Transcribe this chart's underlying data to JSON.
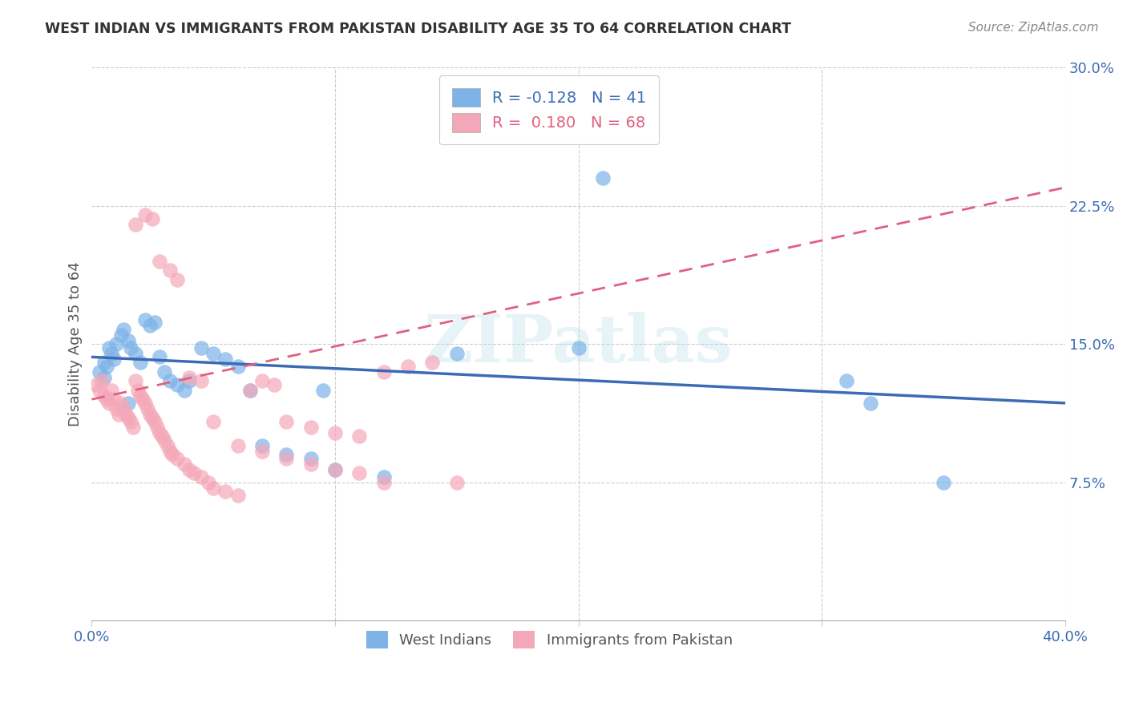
{
  "title": "WEST INDIAN VS IMMIGRANTS FROM PAKISTAN DISABILITY AGE 35 TO 64 CORRELATION CHART",
  "source": "Source: ZipAtlas.com",
  "ylabel": "Disability Age 35 to 64",
  "x_min": 0.0,
  "x_max": 0.4,
  "y_min": 0.0,
  "y_max": 0.3,
  "x_ticks": [
    0.0,
    0.1,
    0.2,
    0.3,
    0.4
  ],
  "x_tick_labels": [
    "0.0%",
    "",
    "",
    "",
    "40.0%"
  ],
  "y_ticks_right": [
    0.075,
    0.15,
    0.225,
    0.3
  ],
  "y_tick_labels_right": [
    "7.5%",
    "15.0%",
    "22.5%",
    "30.0%"
  ],
  "legend_R1": "-0.128",
  "legend_N1": "41",
  "legend_R2": "0.180",
  "legend_N2": "68",
  "blue_color": "#7EB3E8",
  "pink_color": "#F4A7B9",
  "blue_line_color": "#3B6BB5",
  "pink_line_color": "#E06080",
  "watermark": "ZIPatlas",
  "west_indians_x": [
    0.003,
    0.005,
    0.006,
    0.007,
    0.008,
    0.009,
    0.01,
    0.012,
    0.013,
    0.015,
    0.016,
    0.018,
    0.02,
    0.022,
    0.024,
    0.026,
    0.028,
    0.03,
    0.032,
    0.035,
    0.038,
    0.04,
    0.045,
    0.05,
    0.055,
    0.06,
    0.065,
    0.07,
    0.08,
    0.09,
    0.095,
    0.1,
    0.12,
    0.15,
    0.2,
    0.21,
    0.31,
    0.32,
    0.35,
    0.005,
    0.015
  ],
  "west_indians_y": [
    0.135,
    0.14,
    0.138,
    0.148,
    0.145,
    0.142,
    0.15,
    0.155,
    0.158,
    0.152,
    0.148,
    0.145,
    0.14,
    0.163,
    0.16,
    0.162,
    0.143,
    0.135,
    0.13,
    0.128,
    0.125,
    0.13,
    0.148,
    0.145,
    0.142,
    0.138,
    0.125,
    0.095,
    0.09,
    0.088,
    0.125,
    0.082,
    0.078,
    0.145,
    0.148,
    0.24,
    0.13,
    0.118,
    0.075,
    0.132,
    0.118
  ],
  "pakistan_x": [
    0.002,
    0.003,
    0.004,
    0.005,
    0.006,
    0.007,
    0.008,
    0.009,
    0.01,
    0.011,
    0.012,
    0.013,
    0.014,
    0.015,
    0.016,
    0.017,
    0.018,
    0.019,
    0.02,
    0.021,
    0.022,
    0.023,
    0.024,
    0.025,
    0.026,
    0.027,
    0.028,
    0.029,
    0.03,
    0.031,
    0.032,
    0.033,
    0.035,
    0.038,
    0.04,
    0.042,
    0.045,
    0.048,
    0.05,
    0.055,
    0.06,
    0.065,
    0.07,
    0.075,
    0.08,
    0.09,
    0.1,
    0.11,
    0.12,
    0.13,
    0.14,
    0.15,
    0.018,
    0.022,
    0.025,
    0.028,
    0.032,
    0.035,
    0.04,
    0.045,
    0.05,
    0.06,
    0.07,
    0.08,
    0.09,
    0.1,
    0.11,
    0.12
  ],
  "pakistan_y": [
    0.128,
    0.125,
    0.13,
    0.122,
    0.12,
    0.118,
    0.125,
    0.12,
    0.115,
    0.112,
    0.118,
    0.115,
    0.112,
    0.11,
    0.108,
    0.105,
    0.13,
    0.125,
    0.122,
    0.12,
    0.118,
    0.115,
    0.112,
    0.11,
    0.108,
    0.105,
    0.102,
    0.1,
    0.098,
    0.095,
    0.092,
    0.09,
    0.088,
    0.085,
    0.082,
    0.08,
    0.078,
    0.075,
    0.072,
    0.07,
    0.068,
    0.125,
    0.13,
    0.128,
    0.108,
    0.105,
    0.102,
    0.1,
    0.135,
    0.138,
    0.14,
    0.075,
    0.215,
    0.22,
    0.218,
    0.195,
    0.19,
    0.185,
    0.132,
    0.13,
    0.108,
    0.095,
    0.092,
    0.088,
    0.085,
    0.082,
    0.08,
    0.075
  ],
  "blue_trend_x": [
    0.0,
    0.4
  ],
  "blue_trend_y": [
    0.143,
    0.118
  ],
  "pink_trend_x": [
    0.0,
    0.4
  ],
  "pink_trend_y": [
    0.12,
    0.235
  ]
}
